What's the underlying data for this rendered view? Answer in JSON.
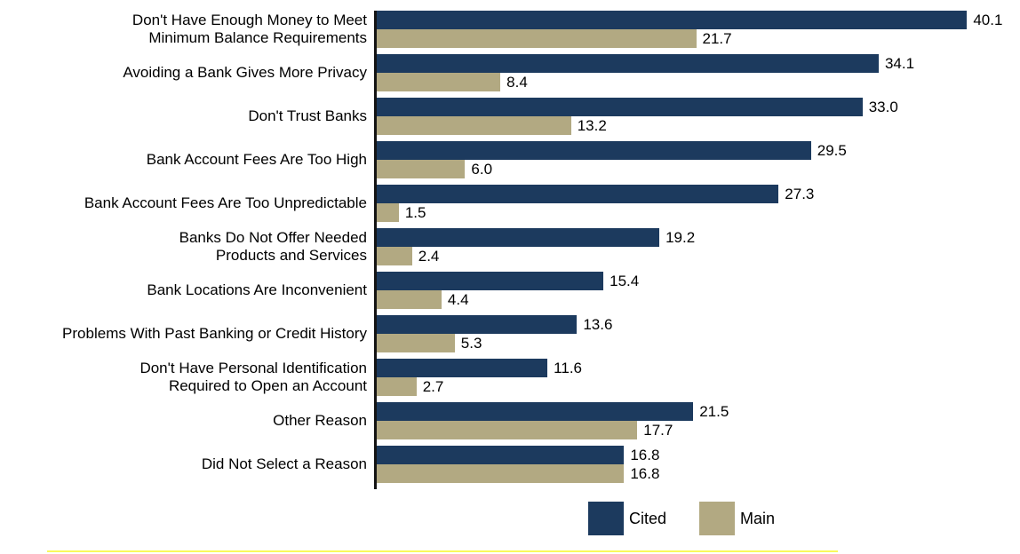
{
  "chart_data": {
    "type": "bar",
    "orientation": "horizontal",
    "title": "",
    "xlabel": "",
    "ylabel": "",
    "grid": false,
    "xlim": [
      0,
      43.7
    ],
    "value_labels": true,
    "legend_position": "bottom",
    "categories": [
      "Don't Have Enough Money to Meet\nMinimum Balance Requirements",
      "Avoiding a Bank Gives More Privacy",
      "Don't Trust Banks",
      "Bank Account Fees Are Too High",
      "Bank Account Fees Are Too Unpredictable",
      "Banks Do Not Offer Needed\nProducts and Services",
      "Bank Locations Are Inconvenient",
      "Problems With Past Banking or Credit History",
      "Don't Have Personal Identification\nRequired to Open an Account",
      "Other Reason",
      "Did Not Select a Reason"
    ],
    "series": [
      {
        "name": "Cited",
        "color": "#1c3a5e",
        "values": [
          40.1,
          34.1,
          33.0,
          29.5,
          27.3,
          19.2,
          15.4,
          13.6,
          11.6,
          21.5,
          16.8
        ]
      },
      {
        "name": "Main",
        "color": "#b2a982",
        "values": [
          21.7,
          8.4,
          13.2,
          6.0,
          1.5,
          2.4,
          4.4,
          5.3,
          2.7,
          17.7,
          16.8
        ]
      }
    ],
    "axis_line_color": "#141414",
    "highlight_line_color": "#f9f95c"
  }
}
